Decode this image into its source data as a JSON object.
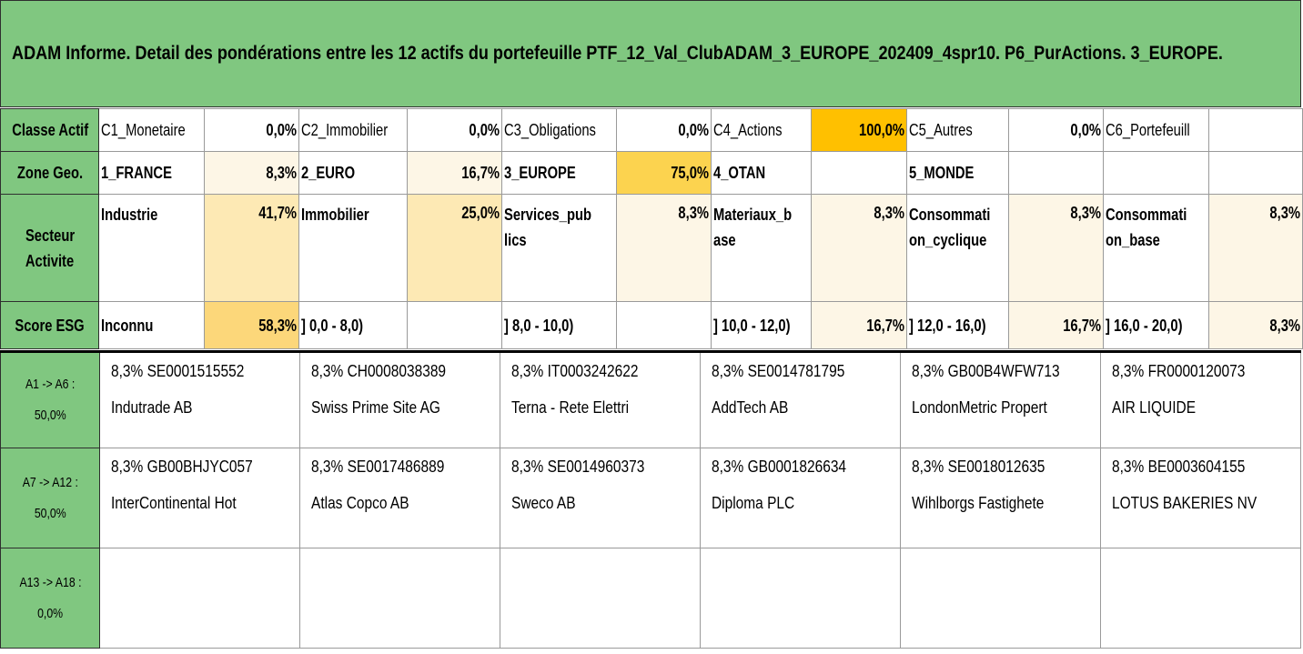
{
  "title": "ADAM Informe. Detail des pondérations entre les 12 actifs du portefeuille PTF_12_Val_ClubADAM_3_EUROPE_202409_4spr10. P6_PurActions. 3_EUROPE.",
  "classe_actif": {
    "header": "Classe Actif",
    "items": [
      {
        "label": "C1_Monetaire",
        "value": "0,0%"
      },
      {
        "label": "C2_Immobilier",
        "value": "0,0%"
      },
      {
        "label": "C3_Obligations",
        "value": "0,0%"
      },
      {
        "label": "C4_Actions",
        "value": "100,0%"
      },
      {
        "label": "C5_Autres",
        "value": "0,0%"
      },
      {
        "label": "C6_Portefeuill",
        "value": ""
      }
    ]
  },
  "zone_geo": {
    "header": "Zone Geo.",
    "items": [
      {
        "label": "1_FRANCE",
        "value": "8,3%"
      },
      {
        "label": "2_EURO",
        "value": "16,7%"
      },
      {
        "label": "3_EUROPE",
        "value": "75,0%"
      },
      {
        "label": "4_OTAN",
        "value": ""
      },
      {
        "label": "5_MONDE",
        "value": ""
      },
      {
        "label": "",
        "value": ""
      }
    ]
  },
  "secteur": {
    "header_line1": "Secteur",
    "header_line2": "Activite",
    "items": [
      {
        "line1": "Industrie",
        "line2": "",
        "value": "41,7%"
      },
      {
        "line1": "Immobilier",
        "line2": "",
        "value": "25,0%"
      },
      {
        "line1": "Services_pub",
        "line2": "lics",
        "value": "8,3%"
      },
      {
        "line1": "Materiaux_b",
        "line2": "ase",
        "value": "8,3%"
      },
      {
        "line1": "Consommati",
        "line2": "on_cyclique",
        "value": "8,3%"
      },
      {
        "line1": "Consommati",
        "line2": "on_base",
        "value": "8,3%"
      }
    ]
  },
  "score_esg": {
    "header": "Score ESG",
    "items": [
      {
        "label": "Inconnu",
        "value": "58,3%"
      },
      {
        "label": "] 0,0 - 8,0)",
        "value": ""
      },
      {
        "label": "] 8,0 - 10,0)",
        "value": ""
      },
      {
        "label": "] 10,0 - 12,0)",
        "value": "16,7%"
      },
      {
        "label": "] 12,0 - 16,0)",
        "value": "16,7%"
      },
      {
        "label": "] 16,0 - 20,0)",
        "value": "8,3%"
      }
    ]
  },
  "asset_groups": [
    {
      "header_line1": "A1 -> A6 :",
      "header_line2": "50,0%",
      "assets": [
        {
          "line1": "8,3% SE0001515552",
          "line2": "Indutrade AB"
        },
        {
          "line1": "8,3% CH0008038389",
          "line2": "Swiss Prime Site AG"
        },
        {
          "line1": "8,3% IT0003242622",
          "line2": "Terna - Rete Elettri"
        },
        {
          "line1": "8,3% SE0014781795",
          "line2": "AddTech AB"
        },
        {
          "line1": "8,3% GB00B4WFW713",
          "line2": "LondonMetric Propert"
        },
        {
          "line1": "8,3% FR0000120073",
          "line2": "AIR LIQUIDE"
        }
      ]
    },
    {
      "header_line1": "A7 -> A12 :",
      "header_line2": "50,0%",
      "assets": [
        {
          "line1": "8,3% GB00BHJYC057",
          "line2": "InterContinental Hot"
        },
        {
          "line1": "8,3% SE0017486889",
          "line2": "Atlas Copco AB"
        },
        {
          "line1": "8,3% SE0014960373",
          "line2": "Sweco AB"
        },
        {
          "line1": "8,3% GB0001826634",
          "line2": "Diploma PLC"
        },
        {
          "line1": "8,3% SE0018012635",
          "line2": "Wihlborgs Fastighete"
        },
        {
          "line1": "8,3% BE0003604155",
          "line2": "LOTUS BAKERIES NV"
        }
      ]
    },
    {
      "header_line1": "A13 -> A18 :",
      "header_line2": "0,0%",
      "assets": [
        {
          "line1": "",
          "line2": ""
        },
        {
          "line1": "",
          "line2": ""
        },
        {
          "line1": "",
          "line2": ""
        },
        {
          "line1": "",
          "line2": ""
        },
        {
          "line1": "",
          "line2": ""
        },
        {
          "line1": "",
          "line2": ""
        }
      ]
    }
  ],
  "colors": {
    "header_green": "#80c780",
    "weight_scale": [
      "#ffffff",
      "#fdf6e6",
      "#fde9b4",
      "#fcd77a",
      "#fcd34f",
      "#ffc000"
    ]
  }
}
